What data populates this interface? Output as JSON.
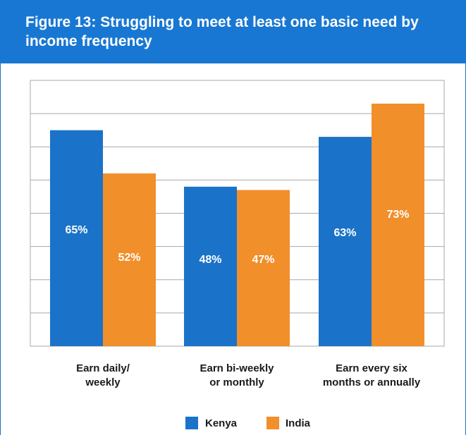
{
  "header": {
    "title": "Figure 13: Struggling to meet at least one basic need by income frequency",
    "background": "#1877d2"
  },
  "chart_data": {
    "type": "bar",
    "categories": [
      [
        "Earn daily/",
        "weekly"
      ],
      [
        "Earn bi-weekly",
        "or monthly"
      ],
      [
        "Earn every six",
        "months or annually"
      ]
    ],
    "series": [
      {
        "name": "Kenya",
        "color": "#1a73c8",
        "values": [
          65,
          48,
          63
        ],
        "labels": [
          "65%",
          "48%",
          "63%"
        ]
      },
      {
        "name": "India",
        "color": "#f18f2b",
        "values": [
          52,
          47,
          73
        ],
        "labels": [
          "52%",
          "47%",
          "73%"
        ]
      }
    ],
    "ylim": [
      0,
      80
    ],
    "y_gridlines": 8,
    "grid": true,
    "y_tick_labels": false,
    "legend": "bottom-center"
  }
}
